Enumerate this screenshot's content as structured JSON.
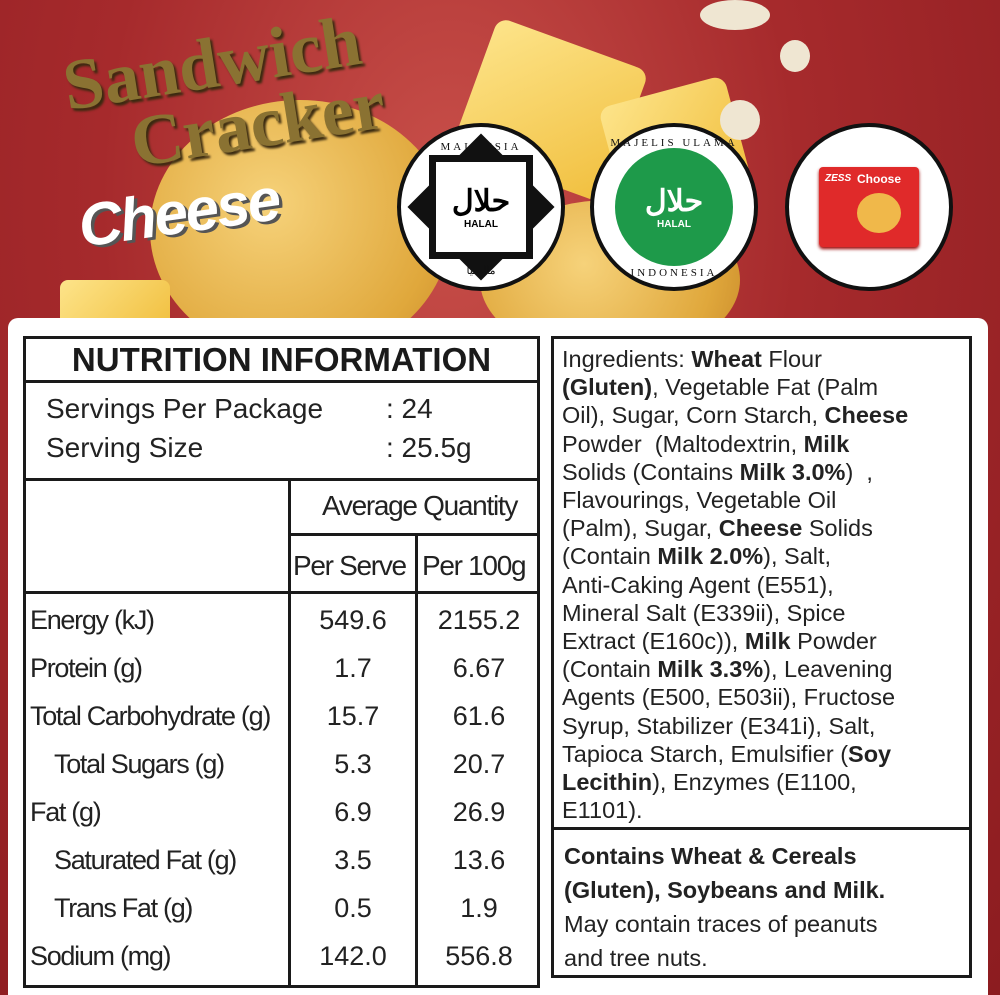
{
  "brand": {
    "line1": "Sandwich",
    "line2": "Cracker",
    "flavor": "Cheese"
  },
  "badges": {
    "malaysia": {
      "top": "MALAYSIA",
      "center": "HALAL",
      "arabic": "حلال",
      "bottom": "مالسيا"
    },
    "indonesia": {
      "top": "MAJELIS ULAMA",
      "center": "HALAL",
      "arabic": "حلال",
      "bottom": "INDONESIA",
      "color": "#1e9a4a"
    },
    "package": {
      "brand": "ZESS",
      "name": "Choose",
      "color": "#e02a2a"
    }
  },
  "nutrition": {
    "title": "NUTRITION INFORMATION",
    "servings_label": "Servings Per Package",
    "servings_value": ": 24",
    "size_label": "Serving Size",
    "size_value": ": 25.5g",
    "avg_label": "Average Quantity",
    "col_serve": "Per Serve",
    "col_100g": "Per 100g",
    "rows": [
      {
        "name": "Energy (kJ)",
        "serve": "549.6",
        "per100": "2155.2",
        "indent": false
      },
      {
        "name": "Protein (g)",
        "serve": "1.7",
        "per100": "6.67",
        "indent": false
      },
      {
        "name": "Total Carbohydrate (g)",
        "serve": "15.7",
        "per100": "61.6",
        "indent": false
      },
      {
        "name": "Total Sugars (g)",
        "serve": "5.3",
        "per100": "20.7",
        "indent": true
      },
      {
        "name": "Fat (g)",
        "serve": "6.9",
        "per100": "26.9",
        "indent": false
      },
      {
        "name": "Saturated Fat (g)",
        "serve": "3.5",
        "per100": "13.6",
        "indent": true
      },
      {
        "name": "Trans Fat (g)",
        "serve": "0.5",
        "per100": "1.9",
        "indent": true
      },
      {
        "name": "Sodium (mg)",
        "serve": "142.0",
        "per100": "556.8",
        "indent": false
      }
    ]
  },
  "ingredients": {
    "lines": [
      [
        {
          "t": "Ingredients: ",
          "b": false
        },
        {
          "t": "Wheat",
          "b": true
        },
        {
          "t": " Flour",
          "b": false
        }
      ],
      [
        {
          "t": "(Gluten)",
          "b": true
        },
        {
          "t": ", Vegetable Fat (Palm",
          "b": false
        }
      ],
      [
        {
          "t": "Oil), Sugar, Corn Starch, ",
          "b": false
        },
        {
          "t": "Cheese",
          "b": true
        }
      ],
      [
        {
          "t": "Powder  (Maltodextrin, ",
          "b": false
        },
        {
          "t": "Milk",
          "b": true
        }
      ],
      [
        {
          "t": "Solids (Contains ",
          "b": false
        },
        {
          "t": "Milk 3.0%",
          "b": true
        },
        {
          "t": ")  ,",
          "b": false
        }
      ],
      [
        {
          "t": "Flavourings, Vegetable Oil",
          "b": false
        }
      ],
      [
        {
          "t": "(Palm), Sugar, ",
          "b": false
        },
        {
          "t": "Cheese",
          "b": true
        },
        {
          "t": " Solids",
          "b": false
        }
      ],
      [
        {
          "t": "(Contain ",
          "b": false
        },
        {
          "t": "Milk 2.0%",
          "b": true
        },
        {
          "t": "), Salt,",
          "b": false
        }
      ],
      [
        {
          "t": "Anti-Caking Agent (E551),",
          "b": false
        }
      ],
      [
        {
          "t": "Mineral Salt (E339ii), Spice",
          "b": false
        }
      ],
      [
        {
          "t": "Extract (E160c)), ",
          "b": false
        },
        {
          "t": "Milk",
          "b": true
        },
        {
          "t": " Powder",
          "b": false
        }
      ],
      [
        {
          "t": "(Contain ",
          "b": false
        },
        {
          "t": "Milk 3.3%",
          "b": true
        },
        {
          "t": "), Leavening",
          "b": false
        }
      ],
      [
        {
          "t": "Agents (E500, E503ii), Fructose",
          "b": false
        }
      ],
      [
        {
          "t": "Syrup, Stabilizer (E341i), Salt,",
          "b": false
        }
      ],
      [
        {
          "t": "Tapioca Starch, Emulsifier (",
          "b": false
        },
        {
          "t": "Soy",
          "b": true
        }
      ],
      [
        {
          "t": "Lecithin",
          "b": true
        },
        {
          "t": "), Enzymes (E1100,",
          "b": false
        }
      ],
      [
        {
          "t": "E1101).",
          "b": false
        }
      ]
    ],
    "allergen_bold_1": "Contains Wheat & Cereals",
    "allergen_bold_2": "(Gluten), Soybeans and Milk.",
    "allergen_note_1": "May contain traces of peanuts",
    "allergen_note_2": "and tree nuts."
  }
}
